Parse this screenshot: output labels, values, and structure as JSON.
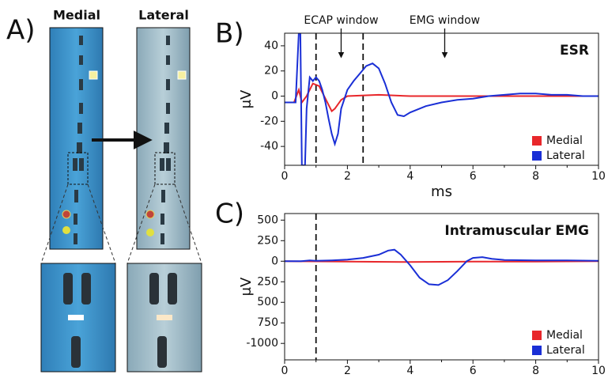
{
  "panel_a": {
    "label": "A)",
    "images": [
      "Medial",
      "Lateral"
    ]
  },
  "chart_data": [
    {
      "type": "line",
      "panel_label": "B)",
      "title": "ESR",
      "xlabel": "ms",
      "ylabel": "μV",
      "xlim": [
        0,
        10
      ],
      "ylim": [
        -55,
        50
      ],
      "xticks": [
        0,
        2,
        4,
        6,
        8,
        10
      ],
      "yticks": [
        -40,
        -20,
        0,
        20,
        40
      ],
      "vlines": [
        1,
        2.5
      ],
      "legend": "lower right",
      "annotations": [
        {
          "text": "ECAP window",
          "x": 1.8
        },
        {
          "text": "EMG window",
          "x": 5.1
        }
      ],
      "series": [
        {
          "name": "Medial",
          "color": "#e8272b",
          "x": [
            0,
            0.3,
            0.45,
            0.55,
            0.7,
            0.9,
            1.1,
            1.3,
            1.5,
            1.6,
            1.8,
            2.0,
            3,
            4,
            5,
            6,
            7,
            8,
            9,
            10
          ],
          "values": [
            -5,
            -5,
            5,
            -5,
            0,
            10,
            8,
            -2,
            -12,
            -10,
            -3,
            0,
            1,
            0,
            0,
            0,
            0,
            0,
            0,
            0
          ]
        },
        {
          "name": "Lateral",
          "color": "#1a2fd6",
          "x": [
            0,
            0.35,
            0.45,
            0.5,
            0.55,
            0.65,
            0.7,
            0.8,
            0.9,
            1.0,
            1.1,
            1.2,
            1.3,
            1.4,
            1.5,
            1.6,
            1.7,
            1.8,
            2.0,
            2.2,
            2.4,
            2.6,
            2.8,
            3.0,
            3.2,
            3.4,
            3.6,
            3.8,
            4.0,
            4.5,
            5,
            5.5,
            6,
            6.5,
            7,
            7.5,
            8,
            8.5,
            9,
            9.5,
            10
          ],
          "values": [
            -5,
            -5,
            50,
            50,
            -55,
            -55,
            -10,
            15,
            12,
            15,
            12,
            5,
            -5,
            -18,
            -30,
            -38,
            -30,
            -10,
            5,
            12,
            18,
            24,
            26,
            22,
            10,
            -5,
            -15,
            -16,
            -13,
            -8,
            -5,
            -3,
            -2,
            0,
            1,
            2,
            2,
            1,
            1,
            0,
            0
          ]
        }
      ]
    },
    {
      "type": "line",
      "panel_label": "C)",
      "title": "Intramuscular EMG",
      "xlabel": "ms",
      "ylabel": "μV",
      "xlim": [
        0,
        10
      ],
      "ylim": [
        -1200,
        580
      ],
      "xticks": [
        0,
        2,
        4,
        6,
        8,
        10
      ],
      "yticks": [
        500,
        250,
        0,
        {
          "value": -250,
          "label": "250"
        },
        {
          "value": -500,
          "label": "500"
        },
        {
          "value": -750,
          "label": "750"
        },
        -1000
      ],
      "vlines": [
        1
      ],
      "legend": "lower right",
      "series": [
        {
          "name": "Medial",
          "color": "#e8272b",
          "x": [
            0,
            2,
            4,
            6,
            8,
            10
          ],
          "values": [
            0,
            -5,
            -10,
            -5,
            -5,
            0
          ]
        },
        {
          "name": "Lateral",
          "color": "#1a2fd6",
          "x": [
            0,
            0.5,
            0.8,
            1,
            1.5,
            2,
            2.5,
            3,
            3.3,
            3.5,
            3.7,
            4,
            4.3,
            4.6,
            4.9,
            5.2,
            5.5,
            5.8,
            6,
            6.3,
            6.6,
            7,
            8,
            9,
            10
          ],
          "values": [
            0,
            0,
            10,
            5,
            10,
            20,
            40,
            80,
            130,
            140,
            80,
            -50,
            -200,
            -280,
            -290,
            -230,
            -120,
            0,
            40,
            50,
            30,
            15,
            10,
            10,
            5
          ]
        }
      ]
    }
  ]
}
